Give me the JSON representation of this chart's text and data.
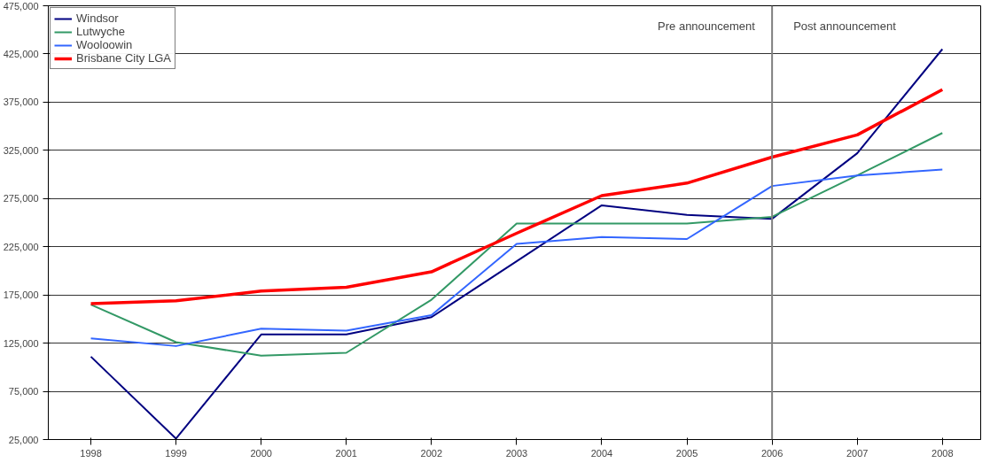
{
  "chart_data": {
    "type": "line",
    "x": [
      1998,
      1999,
      2000,
      2001,
      2002,
      2003,
      2004,
      2005,
      2006,
      2007,
      2008
    ],
    "series": [
      {
        "name": "Windsor",
        "color": "#000080",
        "values": [
          111000,
          26000,
          134000,
          134000,
          152000,
          210000,
          268000,
          258000,
          254000,
          322000,
          430000
        ]
      },
      {
        "name": "Lutwyche",
        "color": "#339966",
        "values": [
          165000,
          126000,
          112000,
          115000,
          170000,
          249000,
          249000,
          249000,
          256000,
          299000,
          343000
        ]
      },
      {
        "name": "Wooloowin",
        "color": "#3366ff",
        "values": [
          130000,
          122000,
          140000,
          138000,
          154000,
          228000,
          235000,
          233000,
          288000,
          299000,
          305000
        ]
      },
      {
        "name": "Brisbane City LGA",
        "color": "#ff0000",
        "values": [
          166000,
          169000,
          179000,
          183000,
          199000,
          239000,
          278000,
          291000,
          318000,
          341000,
          388000
        ]
      }
    ],
    "xlim": [
      1997.5,
      2008.45
    ],
    "xticks": [
      1998,
      1999,
      2000,
      2001,
      2002,
      2003,
      2004,
      2005,
      2006,
      2007,
      2008
    ],
    "ylim": [
      25000,
      475000
    ],
    "yticks": [
      {
        "value": 25000,
        "label": "25,000"
      },
      {
        "value": 75000,
        "label": "75,000"
      },
      {
        "value": 125000,
        "label": "125,000"
      },
      {
        "value": 175000,
        "label": "175,000"
      },
      {
        "value": 225000,
        "label": "225,000"
      },
      {
        "value": 275000,
        "label": "275,000"
      },
      {
        "value": 325000,
        "label": "325,000"
      },
      {
        "value": 375000,
        "label": "375,000"
      },
      {
        "value": 425000,
        "label": "425,000"
      },
      {
        "value": 475000,
        "label": "475,000"
      }
    ],
    "ref_lines": [
      {
        "axis": "x",
        "value": 2006,
        "color": "#808080"
      }
    ],
    "annotations": [
      "Pre announcement",
      "Post announcement"
    ],
    "grid": "y",
    "legend": "top left",
    "marker": "none",
    "line_style": "solid"
  }
}
